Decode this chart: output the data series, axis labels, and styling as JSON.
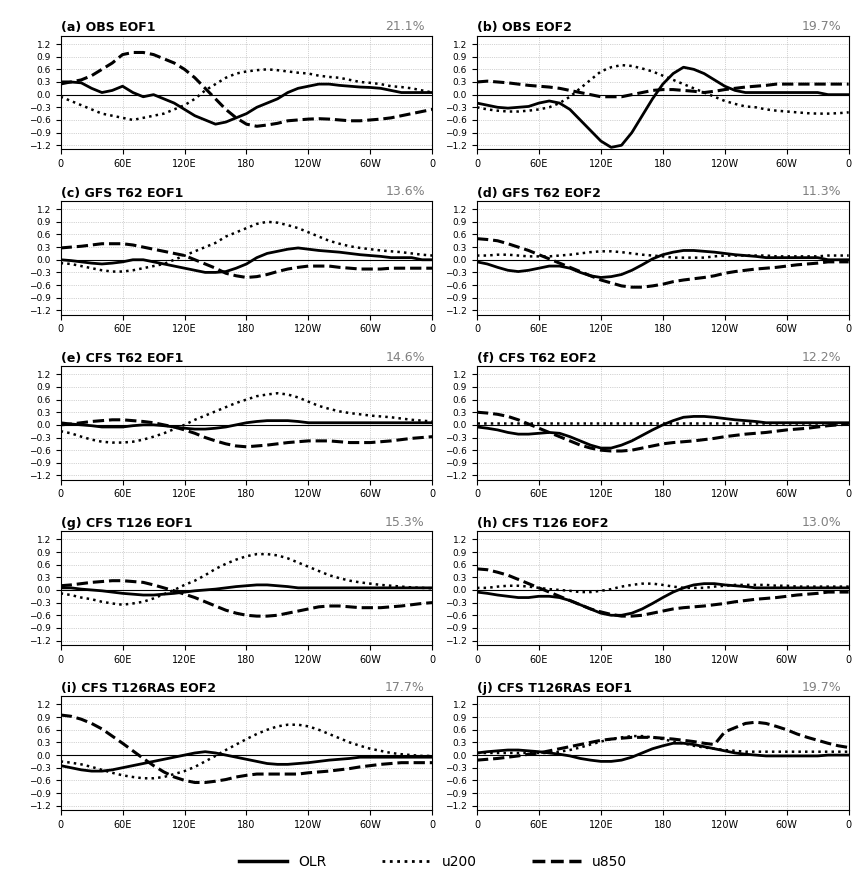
{
  "panels": [
    {
      "label": "(a) OBS EOF1",
      "pct": "21.1%",
      "row": 0,
      "col": 0
    },
    {
      "label": "(b) OBS EOF2",
      "pct": "19.7%",
      "row": 0,
      "col": 1
    },
    {
      "label": "(c) GFS T62 EOF1",
      "pct": "13.6%",
      "row": 1,
      "col": 0
    },
    {
      "label": "(d) GFS T62 EOF2",
      "pct": "11.3%",
      "row": 1,
      "col": 1
    },
    {
      "label": "(e) CFS T62 EOF1",
      "pct": "14.6%",
      "row": 2,
      "col": 0
    },
    {
      "label": "(f) CFS T62 EOF2",
      "pct": "12.2%",
      "row": 2,
      "col": 1
    },
    {
      "label": "(g) CFS T126 EOF1",
      "pct": "15.3%",
      "row": 3,
      "col": 0
    },
    {
      "label": "(h) CFS T126 EOF2",
      "pct": "13.0%",
      "row": 3,
      "col": 1
    },
    {
      "label": "(i) CFS T126RAS EOF2",
      "pct": "17.7%",
      "row": 4,
      "col": 0
    },
    {
      "label": "(j) CFS T126RAS EOF1",
      "pct": "19.7%",
      "row": 4,
      "col": 1
    }
  ],
  "x": [
    0,
    10,
    20,
    30,
    40,
    50,
    60,
    70,
    80,
    90,
    100,
    110,
    120,
    130,
    140,
    150,
    160,
    170,
    180,
    190,
    200,
    210,
    220,
    230,
    240,
    250,
    260,
    270,
    280,
    290,
    300,
    310,
    320,
    330,
    340,
    350,
    360
  ],
  "xticks": [
    0,
    60,
    120,
    180,
    240,
    300,
    360
  ],
  "xticklabels": [
    "0",
    "60E",
    "120E",
    "180",
    "120W",
    "60W",
    "0"
  ],
  "ylim": [
    -1.3,
    1.4
  ],
  "yticks": [
    -1.2,
    -0.9,
    -0.6,
    -0.3,
    0.0,
    0.3,
    0.6,
    0.9,
    1.2
  ],
  "background_color": "#ffffff",
  "line_color": "#000000",
  "grid_color": "#aaaaaa",
  "OLR_linestyle": "solid",
  "u200_linestyle": "dotted",
  "u850_linestyle": "dashed",
  "linewidth_OLR": 2.0,
  "linewidth_u200": 1.8,
  "linewidth_u850": 2.2,
  "data": {
    "a": {
      "OLR": [
        0.25,
        0.3,
        0.28,
        0.15,
        0.05,
        0.1,
        0.2,
        0.05,
        -0.05,
        0.0,
        -0.1,
        -0.2,
        -0.35,
        -0.5,
        -0.6,
        -0.7,
        -0.65,
        -0.55,
        -0.45,
        -0.3,
        -0.2,
        -0.1,
        0.05,
        0.15,
        0.2,
        0.25,
        0.25,
        0.22,
        0.2,
        0.18,
        0.17,
        0.15,
        0.1,
        0.05,
        0.05,
        0.05,
        0.05
      ],
      "u200": [
        -0.05,
        -0.15,
        -0.25,
        -0.35,
        -0.45,
        -0.5,
        -0.55,
        -0.6,
        -0.55,
        -0.5,
        -0.45,
        -0.35,
        -0.25,
        -0.1,
        0.1,
        0.25,
        0.4,
        0.5,
        0.55,
        0.58,
        0.6,
        0.58,
        0.55,
        0.52,
        0.5,
        0.45,
        0.42,
        0.4,
        0.35,
        0.3,
        0.28,
        0.25,
        0.2,
        0.18,
        0.15,
        0.1,
        0.05
      ],
      "u850": [
        0.3,
        0.3,
        0.35,
        0.45,
        0.6,
        0.75,
        0.95,
        1.0,
        1.0,
        0.95,
        0.85,
        0.75,
        0.6,
        0.4,
        0.15,
        -0.1,
        -0.35,
        -0.55,
        -0.7,
        -0.75,
        -0.72,
        -0.68,
        -0.62,
        -0.6,
        -0.58,
        -0.57,
        -0.58,
        -0.6,
        -0.62,
        -0.62,
        -0.6,
        -0.58,
        -0.55,
        -0.5,
        -0.45,
        -0.4,
        -0.35
      ]
    },
    "b": {
      "OLR": [
        -0.2,
        -0.25,
        -0.3,
        -0.32,
        -0.3,
        -0.28,
        -0.2,
        -0.15,
        -0.2,
        -0.35,
        -0.6,
        -0.85,
        -1.1,
        -1.25,
        -1.2,
        -0.9,
        -0.5,
        -0.1,
        0.25,
        0.5,
        0.65,
        0.6,
        0.5,
        0.35,
        0.2,
        0.1,
        0.05,
        0.05,
        0.05,
        0.05,
        0.05,
        0.05,
        0.05,
        0.05,
        0.0,
        0.0,
        0.0
      ],
      "u200": [
        -0.3,
        -0.35,
        -0.38,
        -0.4,
        -0.4,
        -0.38,
        -0.35,
        -0.3,
        -0.2,
        -0.05,
        0.15,
        0.35,
        0.55,
        0.65,
        0.7,
        0.68,
        0.62,
        0.55,
        0.45,
        0.35,
        0.25,
        0.15,
        0.05,
        -0.05,
        -0.15,
        -0.22,
        -0.28,
        -0.3,
        -0.35,
        -0.38,
        -0.4,
        -0.42,
        -0.44,
        -0.45,
        -0.45,
        -0.44,
        -0.42
      ],
      "u850": [
        0.3,
        0.32,
        0.3,
        0.28,
        0.25,
        0.22,
        0.2,
        0.18,
        0.15,
        0.1,
        0.05,
        0.0,
        -0.05,
        -0.05,
        -0.05,
        0.0,
        0.05,
        0.1,
        0.12,
        0.12,
        0.1,
        0.08,
        0.05,
        0.08,
        0.12,
        0.15,
        0.18,
        0.2,
        0.22,
        0.25,
        0.25,
        0.25,
        0.25,
        0.25,
        0.25,
        0.25,
        0.25
      ]
    },
    "c": {
      "OLR": [
        0.0,
        -0.02,
        -0.05,
        -0.08,
        -0.1,
        -0.08,
        -0.05,
        0.0,
        0.0,
        -0.05,
        -0.1,
        -0.15,
        -0.2,
        -0.25,
        -0.3,
        -0.3,
        -0.28,
        -0.2,
        -0.1,
        0.05,
        0.15,
        0.2,
        0.25,
        0.28,
        0.25,
        0.22,
        0.2,
        0.18,
        0.15,
        0.12,
        0.1,
        0.08,
        0.05,
        0.05,
        0.05,
        0.0,
        0.0
      ],
      "u200": [
        -0.08,
        -0.1,
        -0.15,
        -0.2,
        -0.25,
        -0.28,
        -0.28,
        -0.25,
        -0.2,
        -0.15,
        -0.1,
        0.0,
        0.1,
        0.2,
        0.3,
        0.4,
        0.55,
        0.65,
        0.75,
        0.85,
        0.9,
        0.88,
        0.82,
        0.75,
        0.65,
        0.55,
        0.45,
        0.38,
        0.32,
        0.28,
        0.25,
        0.22,
        0.2,
        0.18,
        0.15,
        0.12,
        0.1
      ],
      "u850": [
        0.28,
        0.3,
        0.32,
        0.35,
        0.38,
        0.38,
        0.38,
        0.35,
        0.3,
        0.25,
        0.2,
        0.15,
        0.1,
        0.0,
        -0.1,
        -0.2,
        -0.32,
        -0.38,
        -0.42,
        -0.4,
        -0.35,
        -0.28,
        -0.22,
        -0.18,
        -0.15,
        -0.15,
        -0.15,
        -0.18,
        -0.2,
        -0.22,
        -0.22,
        -0.22,
        -0.2,
        -0.2,
        -0.2,
        -0.2,
        -0.2
      ]
    },
    "d": {
      "OLR": [
        -0.05,
        -0.1,
        -0.18,
        -0.25,
        -0.28,
        -0.25,
        -0.2,
        -0.15,
        -0.15,
        -0.2,
        -0.3,
        -0.38,
        -0.42,
        -0.4,
        -0.35,
        -0.25,
        -0.12,
        0.02,
        0.12,
        0.18,
        0.22,
        0.22,
        0.2,
        0.18,
        0.15,
        0.12,
        0.1,
        0.08,
        0.05,
        0.05,
        0.05,
        0.05,
        0.05,
        0.05,
        0.0,
        0.0,
        0.0
      ],
      "u200": [
        0.1,
        0.1,
        0.12,
        0.12,
        0.1,
        0.08,
        0.08,
        0.08,
        0.1,
        0.12,
        0.15,
        0.18,
        0.2,
        0.2,
        0.18,
        0.15,
        0.12,
        0.1,
        0.08,
        0.05,
        0.05,
        0.05,
        0.05,
        0.08,
        0.1,
        0.1,
        0.1,
        0.1,
        0.1,
        0.08,
        0.08,
        0.08,
        0.08,
        0.08,
        0.1,
        0.1,
        0.1
      ],
      "u850": [
        0.5,
        0.48,
        0.45,
        0.38,
        0.3,
        0.22,
        0.12,
        0.02,
        -0.08,
        -0.18,
        -0.28,
        -0.38,
        -0.48,
        -0.55,
        -0.62,
        -0.65,
        -0.65,
        -0.62,
        -0.58,
        -0.52,
        -0.48,
        -0.45,
        -0.42,
        -0.38,
        -0.32,
        -0.28,
        -0.25,
        -0.22,
        -0.2,
        -0.18,
        -0.15,
        -0.12,
        -0.1,
        -0.08,
        -0.05,
        -0.05,
        -0.05
      ]
    },
    "e": {
      "OLR": [
        0.05,
        0.02,
        0.0,
        -0.02,
        -0.05,
        -0.05,
        -0.05,
        -0.02,
        0.0,
        0.0,
        -0.02,
        -0.05,
        -0.08,
        -0.1,
        -0.1,
        -0.08,
        -0.05,
        0.0,
        0.05,
        0.08,
        0.1,
        0.1,
        0.1,
        0.08,
        0.05,
        0.05,
        0.05,
        0.05,
        0.05,
        0.05,
        0.05,
        0.05,
        0.05,
        0.05,
        0.05,
        0.05,
        0.05
      ],
      "u200": [
        -0.15,
        -0.2,
        -0.28,
        -0.35,
        -0.4,
        -0.42,
        -0.42,
        -0.4,
        -0.35,
        -0.28,
        -0.2,
        -0.1,
        0.0,
        0.12,
        0.22,
        0.32,
        0.42,
        0.52,
        0.6,
        0.68,
        0.72,
        0.75,
        0.72,
        0.65,
        0.55,
        0.45,
        0.38,
        0.32,
        0.28,
        0.25,
        0.22,
        0.2,
        0.18,
        0.15,
        0.12,
        0.1,
        0.08
      ],
      "u850": [
        0.0,
        0.02,
        0.05,
        0.08,
        0.1,
        0.12,
        0.12,
        0.1,
        0.08,
        0.05,
        0.0,
        -0.05,
        -0.12,
        -0.2,
        -0.3,
        -0.38,
        -0.45,
        -0.5,
        -0.52,
        -0.5,
        -0.48,
        -0.45,
        -0.42,
        -0.4,
        -0.38,
        -0.38,
        -0.38,
        -0.4,
        -0.42,
        -0.42,
        -0.42,
        -0.4,
        -0.38,
        -0.35,
        -0.32,
        -0.3,
        -0.28
      ]
    },
    "f": {
      "OLR": [
        -0.05,
        -0.08,
        -0.12,
        -0.18,
        -0.22,
        -0.22,
        -0.2,
        -0.18,
        -0.2,
        -0.28,
        -0.38,
        -0.48,
        -0.55,
        -0.55,
        -0.48,
        -0.38,
        -0.25,
        -0.12,
        0.0,
        0.1,
        0.18,
        0.2,
        0.2,
        0.18,
        0.15,
        0.12,
        0.1,
        0.08,
        0.05,
        0.05,
        0.05,
        0.05,
        0.05,
        0.05,
        0.05,
        0.05,
        0.05
      ],
      "u200": [
        0.05,
        0.05,
        0.05,
        0.05,
        0.05,
        0.05,
        0.05,
        0.05,
        0.05,
        0.05,
        0.05,
        0.05,
        0.05,
        0.05,
        0.05,
        0.05,
        0.05,
        0.05,
        0.05,
        0.05,
        0.05,
        0.05,
        0.05,
        0.05,
        0.05,
        0.05,
        0.05,
        0.05,
        0.05,
        0.05,
        0.05,
        0.05,
        0.05,
        0.05,
        0.05,
        0.05,
        0.05
      ],
      "u850": [
        0.3,
        0.28,
        0.25,
        0.2,
        0.12,
        0.02,
        -0.08,
        -0.18,
        -0.28,
        -0.38,
        -0.48,
        -0.55,
        -0.6,
        -0.62,
        -0.62,
        -0.6,
        -0.55,
        -0.5,
        -0.45,
        -0.42,
        -0.4,
        -0.38,
        -0.35,
        -0.32,
        -0.28,
        -0.25,
        -0.22,
        -0.2,
        -0.18,
        -0.15,
        -0.12,
        -0.1,
        -0.08,
        -0.05,
        -0.02,
        0.0,
        0.02
      ]
    },
    "g": {
      "OLR": [
        0.05,
        0.05,
        0.02,
        0.0,
        -0.02,
        -0.05,
        -0.08,
        -0.1,
        -0.12,
        -0.12,
        -0.1,
        -0.08,
        -0.05,
        -0.02,
        0.0,
        0.02,
        0.05,
        0.08,
        0.1,
        0.12,
        0.12,
        0.1,
        0.08,
        0.05,
        0.05,
        0.05,
        0.05,
        0.05,
        0.05,
        0.05,
        0.05,
        0.05,
        0.05,
        0.05,
        0.05,
        0.05,
        0.05
      ],
      "u200": [
        -0.08,
        -0.12,
        -0.18,
        -0.22,
        -0.28,
        -0.32,
        -0.35,
        -0.32,
        -0.28,
        -0.2,
        -0.1,
        0.0,
        0.12,
        0.22,
        0.35,
        0.5,
        0.62,
        0.72,
        0.8,
        0.85,
        0.85,
        0.82,
        0.75,
        0.65,
        0.55,
        0.45,
        0.35,
        0.28,
        0.22,
        0.18,
        0.15,
        0.12,
        0.1,
        0.08,
        0.06,
        0.05,
        0.04
      ],
      "u850": [
        0.1,
        0.12,
        0.15,
        0.18,
        0.2,
        0.22,
        0.22,
        0.2,
        0.18,
        0.12,
        0.05,
        -0.02,
        -0.1,
        -0.18,
        -0.28,
        -0.38,
        -0.48,
        -0.55,
        -0.6,
        -0.62,
        -0.62,
        -0.6,
        -0.55,
        -0.5,
        -0.45,
        -0.4,
        -0.38,
        -0.38,
        -0.4,
        -0.42,
        -0.42,
        -0.42,
        -0.4,
        -0.38,
        -0.35,
        -0.32,
        -0.3
      ]
    },
    "h": {
      "OLR": [
        -0.05,
        -0.08,
        -0.12,
        -0.15,
        -0.18,
        -0.18,
        -0.15,
        -0.15,
        -0.18,
        -0.25,
        -0.35,
        -0.45,
        -0.55,
        -0.6,
        -0.6,
        -0.55,
        -0.45,
        -0.32,
        -0.18,
        -0.05,
        0.05,
        0.12,
        0.15,
        0.15,
        0.12,
        0.1,
        0.08,
        0.05,
        0.05,
        0.05,
        0.05,
        0.05,
        0.05,
        0.05,
        0.05,
        0.05,
        0.05
      ],
      "u200": [
        0.05,
        0.05,
        0.08,
        0.1,
        0.1,
        0.08,
        0.05,
        0.02,
        0.0,
        -0.02,
        -0.05,
        -0.05,
        -0.02,
        0.02,
        0.08,
        0.12,
        0.15,
        0.15,
        0.12,
        0.08,
        0.05,
        0.05,
        0.05,
        0.08,
        0.1,
        0.12,
        0.12,
        0.12,
        0.12,
        0.1,
        0.1,
        0.08,
        0.08,
        0.08,
        0.08,
        0.08,
        0.08
      ],
      "u850": [
        0.5,
        0.48,
        0.42,
        0.35,
        0.25,
        0.15,
        0.05,
        -0.05,
        -0.15,
        -0.25,
        -0.35,
        -0.45,
        -0.52,
        -0.58,
        -0.62,
        -0.62,
        -0.6,
        -0.55,
        -0.5,
        -0.45,
        -0.42,
        -0.4,
        -0.38,
        -0.35,
        -0.32,
        -0.28,
        -0.25,
        -0.22,
        -0.2,
        -0.18,
        -0.15,
        -0.12,
        -0.1,
        -0.08,
        -0.05,
        -0.05,
        -0.05
      ]
    },
    "i": {
      "OLR": [
        -0.25,
        -0.3,
        -0.35,
        -0.38,
        -0.38,
        -0.35,
        -0.3,
        -0.25,
        -0.2,
        -0.15,
        -0.1,
        -0.05,
        0.0,
        0.05,
        0.08,
        0.05,
        0.0,
        -0.05,
        -0.1,
        -0.15,
        -0.2,
        -0.22,
        -0.22,
        -0.2,
        -0.18,
        -0.15,
        -0.12,
        -0.1,
        -0.08,
        -0.05,
        -0.05,
        -0.05,
        -0.05,
        -0.05,
        -0.05,
        -0.05,
        -0.05
      ],
      "u200": [
        -0.15,
        -0.18,
        -0.22,
        -0.28,
        -0.35,
        -0.42,
        -0.48,
        -0.52,
        -0.55,
        -0.55,
        -0.52,
        -0.45,
        -0.38,
        -0.28,
        -0.15,
        -0.02,
        0.12,
        0.25,
        0.38,
        0.5,
        0.6,
        0.68,
        0.72,
        0.72,
        0.68,
        0.6,
        0.5,
        0.4,
        0.3,
        0.22,
        0.15,
        0.1,
        0.05,
        0.02,
        0.0,
        -0.02,
        -0.02
      ],
      "u850": [
        0.95,
        0.92,
        0.85,
        0.75,
        0.62,
        0.45,
        0.28,
        0.1,
        -0.08,
        -0.25,
        -0.4,
        -0.52,
        -0.6,
        -0.65,
        -0.65,
        -0.62,
        -0.58,
        -0.52,
        -0.48,
        -0.45,
        -0.45,
        -0.45,
        -0.45,
        -0.45,
        -0.42,
        -0.4,
        -0.38,
        -0.35,
        -0.32,
        -0.28,
        -0.25,
        -0.22,
        -0.2,
        -0.18,
        -0.18,
        -0.18,
        -0.18
      ]
    },
    "j": {
      "OLR": [
        0.05,
        0.08,
        0.1,
        0.12,
        0.12,
        0.1,
        0.08,
        0.05,
        0.02,
        -0.02,
        -0.08,
        -0.12,
        -0.15,
        -0.15,
        -0.12,
        -0.05,
        0.05,
        0.15,
        0.22,
        0.28,
        0.28,
        0.25,
        0.2,
        0.15,
        0.1,
        0.05,
        0.02,
        0.0,
        -0.02,
        -0.02,
        -0.02,
        -0.02,
        -0.02,
        -0.02,
        0.0,
        0.0,
        0.0
      ],
      "u200": [
        0.05,
        0.05,
        0.05,
        0.05,
        0.05,
        0.05,
        0.05,
        0.05,
        0.08,
        0.12,
        0.18,
        0.25,
        0.32,
        0.38,
        0.42,
        0.45,
        0.45,
        0.42,
        0.38,
        0.32,
        0.28,
        0.22,
        0.18,
        0.15,
        0.12,
        0.1,
        0.08,
        0.08,
        0.08,
        0.08,
        0.08,
        0.08,
        0.08,
        0.08,
        0.08,
        0.08,
        0.08
      ],
      "u850": [
        -0.12,
        -0.1,
        -0.08,
        -0.05,
        -0.02,
        0.02,
        0.05,
        0.1,
        0.15,
        0.2,
        0.25,
        0.3,
        0.35,
        0.38,
        0.4,
        0.42,
        0.42,
        0.42,
        0.4,
        0.38,
        0.35,
        0.32,
        0.28,
        0.25,
        0.55,
        0.65,
        0.75,
        0.78,
        0.75,
        0.68,
        0.6,
        0.5,
        0.42,
        0.35,
        0.28,
        0.22,
        0.18
      ]
    }
  }
}
